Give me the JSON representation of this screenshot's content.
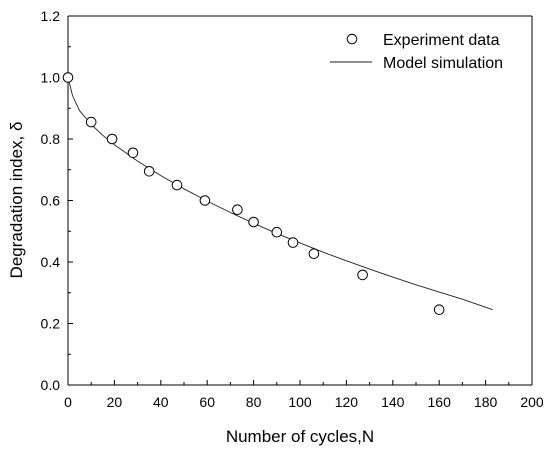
{
  "chart_data": {
    "type": "scatter",
    "xlabel": "Number of cycles,N",
    "ylabel": "Degradation index, δ",
    "xlim": [
      0,
      200
    ],
    "ylim": [
      0.0,
      1.2
    ],
    "xticks": [
      0,
      20,
      40,
      60,
      80,
      100,
      120,
      140,
      160,
      180,
      200
    ],
    "yticks": [
      0.0,
      0.2,
      0.4,
      0.6,
      0.8,
      1.0,
      1.2
    ],
    "grid": false,
    "legend_position": "top-right",
    "series": [
      {
        "name": "Experiment data",
        "style": "open-circle",
        "x": [
          0,
          10,
          19,
          28,
          35,
          47,
          59,
          73,
          80,
          90,
          97,
          106,
          127,
          160
        ],
        "y": [
          1.0,
          0.855,
          0.8,
          0.755,
          0.695,
          0.65,
          0.6,
          0.57,
          0.53,
          0.497,
          0.463,
          0.427,
          0.358,
          0.245
        ]
      },
      {
        "name": "Model simulation",
        "style": "line",
        "x": [
          0,
          2,
          5,
          10,
          15,
          20,
          30,
          40,
          50,
          60,
          70,
          80,
          90,
          100,
          110,
          120,
          130,
          140,
          150,
          160,
          170,
          183
        ],
        "y": [
          1.0,
          0.94,
          0.892,
          0.847,
          0.812,
          0.781,
          0.728,
          0.681,
          0.638,
          0.598,
          0.561,
          0.526,
          0.493,
          0.462,
          0.432,
          0.404,
          0.377,
          0.351,
          0.326,
          0.302,
          0.279,
          0.245
        ]
      }
    ]
  }
}
